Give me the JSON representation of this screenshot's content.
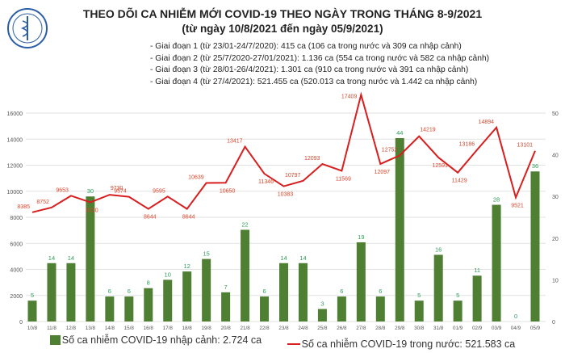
{
  "header": {
    "logo_text": "BỘ Y TẾ · MINISTRY OF HEALTH",
    "title": "THEO DÕI CA NHIỄM MỚI COVID-19 THEO NGÀY TRONG THÁNG 8-9/2021",
    "subtitle": "(từ ngày 10/8/2021 đến ngày 05/9/2021)",
    "notes": [
      "- Giai đoạn 1 (từ 23/01-24/7/2020): 415 ca (106 ca trong nước và 309 ca nhập cảnh)",
      "- Giai đoạn 2 (từ 25/7/2020-27/01/2021): 1.136 ca (554 ca trong nước và 582 ca nhập cảnh)",
      "- Giai đoạn 3 (từ 28/01-26/4/2021): 1.301 ca (910 ca trong nước và 391 ca nhập cảnh)",
      "- Giai đoạn 4 (từ 27/4/2021): 521.455 ca (520.013 ca trong nước và 1.442 ca nhập cảnh)"
    ]
  },
  "chart_data": {
    "type": "bar+line",
    "categories": [
      "10/8",
      "11/8",
      "12/8",
      "13/8",
      "14/8",
      "15/8",
      "16/8",
      "17/8",
      "18/8",
      "19/8",
      "20/8",
      "21/8",
      "22/8",
      "23/8",
      "24/8",
      "25/8",
      "26/8",
      "27/8",
      "28/8",
      "29/8",
      "30/8",
      "31/8",
      "01/9",
      "02/9",
      "03/9",
      "04/9",
      "05/9"
    ],
    "series": [
      {
        "name": "Số ca nhiễm COVID-19 nhập cảnh: 2.724 ca",
        "type": "bar",
        "axis": "right",
        "color": "#4f7f33",
        "values": [
          5,
          14,
          14,
          30,
          6,
          6,
          8,
          10,
          12,
          15,
          7,
          22,
          6,
          14,
          14,
          3,
          6,
          19,
          6,
          44,
          5,
          16,
          5,
          11,
          28,
          0,
          36
        ]
      },
      {
        "name": "Số ca nhiễm COVID-19 trong nước: 521.583 ca",
        "type": "line",
        "axis": "left",
        "color": "#d81e1e",
        "values": [
          8385,
          8752,
          9653,
          9150,
          9730,
          9574,
          8644,
          9595,
          8644,
          10639,
          10650,
          13417,
          11346,
          10383,
          10797,
          12093,
          11569,
          17409,
          12097,
          12752,
          14219,
          12591,
          11429,
          13186,
          14894,
          9521,
          13101
        ]
      }
    ],
    "left_axis": {
      "ticks": [
        "0",
        "2000",
        "4000",
        "6000",
        "8000",
        "10000",
        "12000",
        "14000",
        "16000"
      ],
      "range": [
        0,
        16000
      ]
    },
    "right_axis": {
      "ticks": [
        "0",
        "10",
        "20",
        "30",
        "40",
        "50"
      ],
      "range": [
        0,
        50
      ]
    },
    "grid": true,
    "legend_position": "bottom"
  }
}
